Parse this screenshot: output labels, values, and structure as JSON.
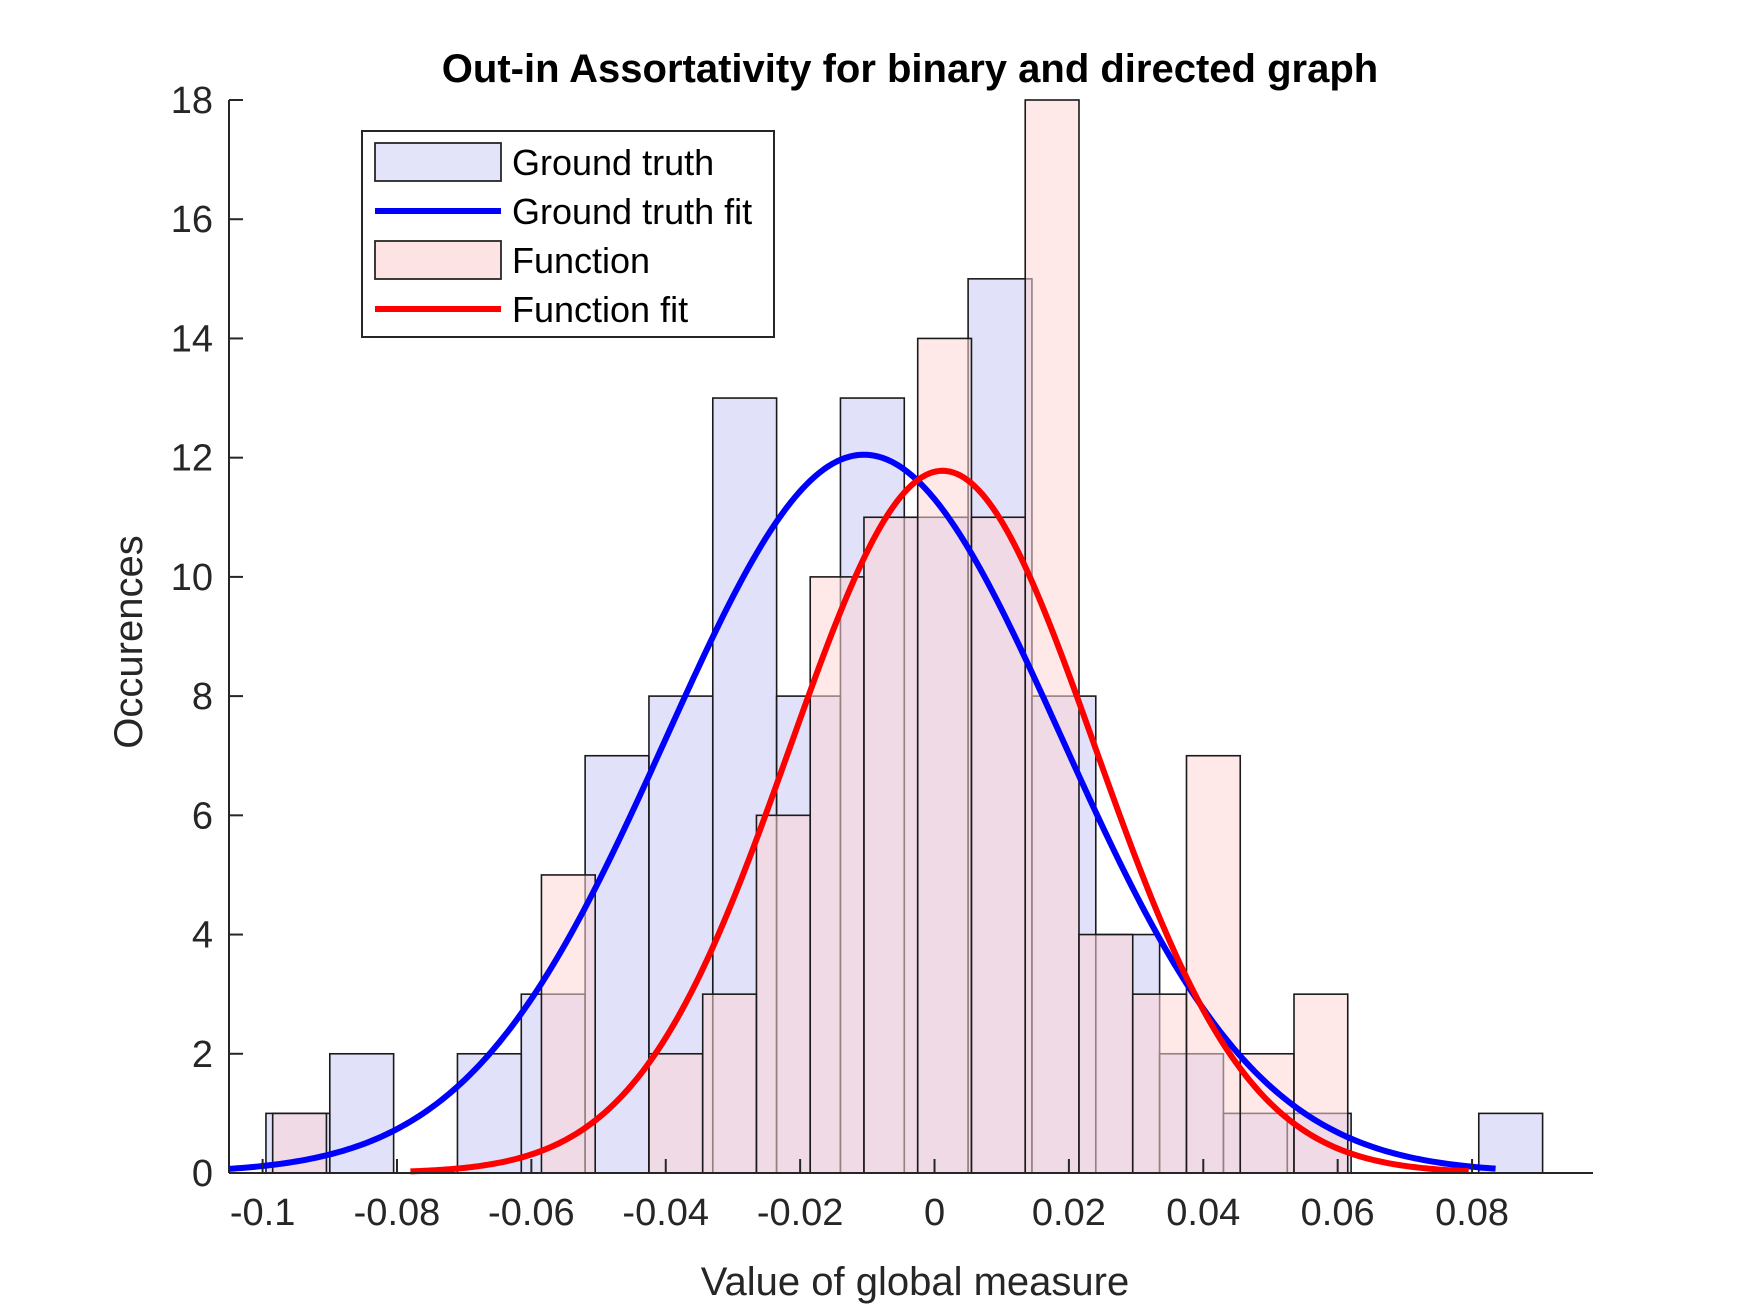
{
  "chart_data": {
    "type": "bar",
    "title": "Out-in Assortativity for binary and directed graph",
    "xlabel": "Value of global measure",
    "ylabel": "Occurences",
    "xlim": [
      -0.105,
      0.098
    ],
    "ylim": [
      0,
      18
    ],
    "xticks": [
      -0.1,
      -0.08,
      -0.06,
      -0.04,
      -0.02,
      0,
      0.02,
      0.04,
      0.06,
      0.08
    ],
    "xtick_labels": [
      "-0.1",
      "-0.08",
      "-0.06",
      "-0.04",
      "-0.02",
      "0",
      "0.02",
      "0.04",
      "0.06",
      "0.08"
    ],
    "yticks": [
      0,
      2,
      4,
      6,
      8,
      10,
      12,
      14,
      16,
      18
    ],
    "ytick_labels": [
      "0",
      "2",
      "4",
      "6",
      "8",
      "10",
      "12",
      "14",
      "16",
      "18"
    ],
    "grid": false,
    "legend_position": "top-left",
    "series": [
      {
        "name": "Ground truth",
        "kind": "histogram",
        "color": "#c8c8f5",
        "bin_edges": [
          -0.0995,
          -0.09,
          -0.0805,
          -0.071,
          -0.0615,
          -0.052,
          -0.0425,
          -0.033,
          -0.0235,
          -0.014,
          -0.0045,
          0.005,
          0.0145,
          0.024,
          0.0335,
          0.043,
          0.0525,
          0.062,
          0.0715,
          0.081,
          0.0905
        ],
        "counts": [
          1,
          2,
          0,
          2,
          3,
          7,
          8,
          13,
          8,
          13,
          11,
          15,
          8,
          4,
          2,
          1,
          1,
          0,
          0,
          1
        ]
      },
      {
        "name": "Ground truth fit",
        "kind": "normal-fit",
        "color": "#0000ff",
        "mean": -0.0105,
        "sigma": 0.0294,
        "peak": 12.05,
        "x_range": [
          -0.105,
          0.0835
        ]
      },
      {
        "name": "Function",
        "kind": "histogram",
        "color": "#fdd5d5",
        "bin_edges": [
          -0.0985,
          -0.0905,
          -0.0825,
          -0.0745,
          -0.0665,
          -0.0585,
          -0.0505,
          -0.0425,
          -0.0345,
          -0.0265,
          -0.0185,
          -0.0105,
          -0.0025,
          0.0055,
          0.0135,
          0.0215,
          0.0295,
          0.0375,
          0.0455,
          0.0535,
          0.0615
        ],
        "counts": [
          1,
          0,
          0,
          0,
          0,
          5,
          0,
          2,
          3,
          6,
          10,
          11,
          14,
          11,
          18,
          4,
          3,
          7,
          2,
          3
        ],
        "outline_only": [
          false,
          false,
          false,
          false,
          false,
          false,
          false,
          false,
          false,
          false,
          false,
          false,
          false,
          false,
          false,
          false,
          false,
          false,
          false,
          false
        ]
      },
      {
        "name": "Function fit",
        "kind": "normal-fit",
        "color": "#ff0000",
        "mean": 0.0012,
        "sigma": 0.0227,
        "peak": 11.78,
        "x_range": [
          -0.078,
          0.0795
        ]
      }
    ]
  },
  "legend": {
    "items": [
      {
        "label": "Ground truth",
        "swatch": "patch",
        "color": "#e3e3fa"
      },
      {
        "label": "Ground truth fit",
        "swatch": "line",
        "color": "#0000ff"
      },
      {
        "label": "Function",
        "swatch": "patch",
        "color": "#fde3e3"
      },
      {
        "label": "Function fit",
        "swatch": "line",
        "color": "#ff0000"
      }
    ]
  }
}
